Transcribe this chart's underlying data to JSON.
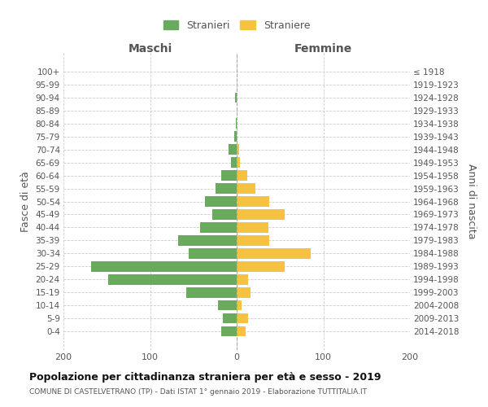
{
  "age_groups": [
    "0-4",
    "5-9",
    "10-14",
    "15-19",
    "20-24",
    "25-29",
    "30-34",
    "35-39",
    "40-44",
    "45-49",
    "50-54",
    "55-59",
    "60-64",
    "65-69",
    "70-74",
    "75-79",
    "80-84",
    "85-89",
    "90-94",
    "95-99",
    "100+"
  ],
  "birth_years": [
    "2014-2018",
    "2009-2013",
    "2004-2008",
    "1999-2003",
    "1994-1998",
    "1989-1993",
    "1984-1988",
    "1979-1983",
    "1974-1978",
    "1969-1973",
    "1964-1968",
    "1959-1963",
    "1954-1958",
    "1949-1953",
    "1944-1948",
    "1939-1943",
    "1934-1938",
    "1929-1933",
    "1924-1928",
    "1919-1923",
    "≤ 1918"
  ],
  "males": [
    18,
    16,
    22,
    58,
    148,
    168,
    55,
    68,
    42,
    28,
    37,
    24,
    18,
    7,
    9,
    3,
    1,
    0,
    2,
    0,
    0
  ],
  "females": [
    10,
    13,
    6,
    16,
    13,
    55,
    85,
    38,
    37,
    55,
    38,
    22,
    12,
    4,
    3,
    0,
    0,
    0,
    0,
    0,
    0
  ],
  "male_color": "#6aaa5e",
  "female_color": "#f5c242",
  "male_label": "Stranieri",
  "female_label": "Straniere",
  "title": "Popolazione per cittadinanza straniera per età e sesso - 2019",
  "subtitle": "COMUNE DI CASTELVETRANO (TP) - Dati ISTAT 1° gennaio 2019 - Elaborazione TUTTITALIA.IT",
  "xlabel_left": "Maschi",
  "xlabel_right": "Femmine",
  "ylabel_left": "Fasce di età",
  "ylabel_right": "Anni di nascita",
  "xlim": 200,
  "background_color": "#ffffff",
  "grid_color": "#cccccc",
  "text_color": "#555555",
  "title_color": "#111111",
  "subtitle_color": "#555555"
}
